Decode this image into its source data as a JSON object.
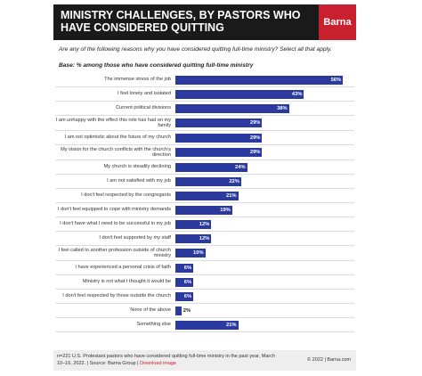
{
  "chart_data": {
    "type": "bar",
    "title": "MINISTRY CHALLENGES, BY PASTORS WHO HAVE CONSIDERED QUITTING",
    "brand": "Barna",
    "subtitle": "Are any of the following reasons why you have considered quitting full-time ministry? Select all that apply.",
    "base": "Base: % among those who have considered quitting full-time ministry",
    "categories": [
      "The immense stress of the job",
      "I feel lonely and isolated",
      "Current political divisions",
      "I am unhappy with the effect this role has had on my family",
      "I am not optimistic about the future of my church",
      "My vision for the church conflicts with the church's direction",
      "My church is steadily declining",
      "I am not satisfied with my job",
      "I don't feel respected by the congregants",
      "I don't feel equipped to cope with ministry demands",
      "I don't have what I need to be successful in my job",
      "I don't feel supported by my staff",
      "I feel called to another profession outside of church ministry",
      "I have experienced a personal crisis of faith",
      "Ministry is not what I thought it would be",
      "I don't feel respected by those outside the church",
      "None of the above",
      "Something else"
    ],
    "values": [
      56,
      43,
      38,
      29,
      29,
      29,
      24,
      22,
      21,
      19,
      12,
      12,
      10,
      6,
      6,
      6,
      2,
      21
    ],
    "value_labels": [
      "56%",
      "43%",
      "38%",
      "29%",
      "29%",
      "29%",
      "24%",
      "22%",
      "21%",
      "19%",
      "12%",
      "12%",
      "10%",
      "6%",
      "6%",
      "6%",
      "2%",
      "21%"
    ],
    "color": "#2b3a9e",
    "footer": {
      "note": "n=221 U.S. Protestant pastors who have considered quitting full-time ministry in the past year, March 10–16, 2022. | Source: Barna Group |",
      "link": "Download image",
      "copyright": "© 2022 | Barna.com"
    }
  }
}
